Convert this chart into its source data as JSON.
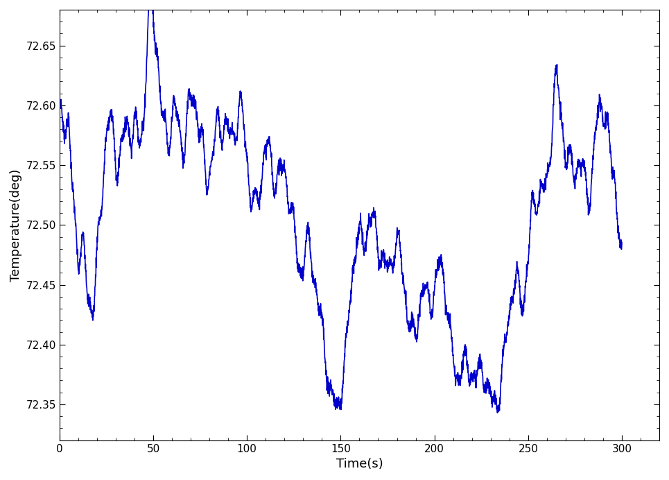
{
  "title": "",
  "xlabel": "Time(s)",
  "ylabel": "Temperature(deg)",
  "xlim": [
    0,
    320
  ],
  "ylim": [
    72.32,
    72.68
  ],
  "yticks": [
    72.35,
    72.4,
    72.45,
    72.5,
    72.55,
    72.6,
    72.65
  ],
  "xticks": [
    0,
    50,
    100,
    150,
    200,
    250,
    300
  ],
  "line_color": "#0000CC",
  "line_width": 1.2,
  "bg_color": "#ffffff",
  "figsize": [
    9.65,
    6.92
  ],
  "dpi": 100,
  "base_t": [
    0,
    5,
    10,
    15,
    18,
    22,
    26,
    30,
    35,
    40,
    45,
    48,
    52,
    55,
    60,
    65,
    70,
    75,
    80,
    85,
    90,
    95,
    100,
    105,
    108,
    112,
    115,
    118,
    122,
    126,
    130,
    135,
    138,
    142,
    145,
    148,
    150,
    153,
    157,
    160,
    163,
    165,
    167,
    170,
    173,
    177,
    180,
    183,
    187,
    190,
    193,
    196,
    200,
    203,
    207,
    210,
    213,
    215,
    218,
    220,
    222,
    225,
    228,
    230,
    232,
    235,
    238,
    240,
    243,
    246,
    248,
    250,
    252,
    255,
    258,
    262,
    265,
    268,
    270,
    273,
    276,
    280,
    283,
    287,
    290,
    293,
    296,
    300
  ],
  "base_v": [
    72.555,
    72.555,
    72.49,
    72.465,
    72.47,
    72.5,
    72.535,
    72.57,
    72.595,
    72.595,
    72.585,
    72.635,
    72.64,
    72.62,
    72.6,
    72.575,
    72.575,
    72.56,
    72.595,
    72.575,
    72.565,
    72.565,
    72.58,
    72.545,
    72.535,
    72.535,
    72.535,
    72.535,
    72.535,
    72.52,
    72.47,
    72.44,
    72.43,
    72.42,
    72.41,
    72.39,
    72.39,
    72.4,
    72.44,
    72.475,
    72.5,
    72.52,
    72.515,
    72.49,
    72.48,
    72.465,
    72.455,
    72.445,
    72.435,
    72.43,
    72.445,
    72.44,
    72.44,
    72.445,
    72.42,
    72.41,
    72.405,
    72.395,
    72.385,
    72.39,
    72.38,
    72.375,
    72.37,
    72.385,
    72.39,
    72.4,
    72.415,
    72.42,
    72.425,
    72.43,
    72.44,
    72.46,
    72.5,
    72.54,
    72.565,
    72.575,
    72.58,
    72.565,
    72.555,
    72.555,
    72.555,
    72.56,
    72.555,
    72.565,
    72.565,
    72.56,
    72.565,
    72.475
  ]
}
